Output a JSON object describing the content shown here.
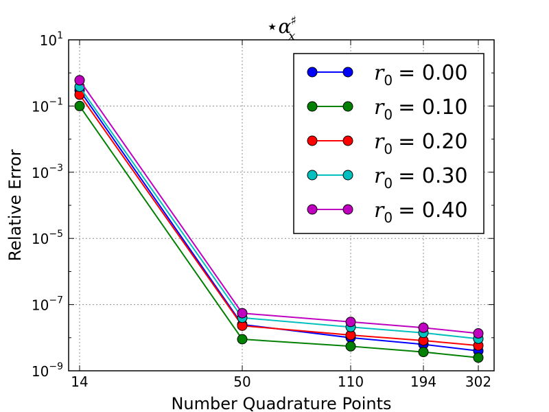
{
  "chart_data": {
    "type": "line",
    "title": {
      "prefix": "⋆",
      "symbol": "α",
      "superscript": "♯",
      "subscript": "x"
    },
    "xlabel": "Number Quadrature Points",
    "ylabel": "Relative Error",
    "x_ticks": [
      14,
      50,
      110,
      194,
      302
    ],
    "y_scale": "log",
    "ylim": [
      1e-09,
      10
    ],
    "y_ticks": [
      {
        "value": 1e-09,
        "base": "10",
        "exp": "−9"
      },
      {
        "value": 1e-07,
        "base": "10",
        "exp": "−7"
      },
      {
        "value": 1e-05,
        "base": "10",
        "exp": "−5"
      },
      {
        "value": 0.001,
        "base": "10",
        "exp": "−3"
      },
      {
        "value": 0.1,
        "base": "10",
        "exp": "−1"
      },
      {
        "value": 10,
        "base": "10",
        "exp": "1"
      }
    ],
    "grid": true,
    "legend_position": "top-right",
    "series": [
      {
        "name": "r0 = 0.00",
        "sym": "r",
        "sub": "0",
        "value_label": "= 0.00",
        "color": "#0000ff",
        "values": [
          0.3,
          2.5e-08,
          1e-08,
          6.3e-09,
          4e-09
        ]
      },
      {
        "name": "r0 = 0.10",
        "sym": "r",
        "sub": "0",
        "value_label": "= 0.10",
        "color": "#008000",
        "values": [
          0.1,
          9e-09,
          5.5e-09,
          3.7e-09,
          2.5e-09
        ]
      },
      {
        "name": "r0 = 0.20",
        "sym": "r",
        "sub": "0",
        "value_label": "= 0.20",
        "color": "#ff0000",
        "values": [
          0.22,
          2.3e-08,
          1.2e-08,
          8.2e-09,
          5.8e-09
        ]
      },
      {
        "name": "r0 = 0.30",
        "sym": "r",
        "sub": "0",
        "value_label": "= 0.30",
        "color": "#00bfbf",
        "values": [
          0.38,
          4e-08,
          2.1e-08,
          1.4e-08,
          9.3e-09
        ]
      },
      {
        "name": "r0 = 0.40",
        "sym": "r",
        "sub": "0",
        "value_label": "= 0.40",
        "color": "#bf00bf",
        "values": [
          0.6,
          5.5e-08,
          3e-08,
          2e-08,
          1.35e-08
        ]
      }
    ]
  }
}
